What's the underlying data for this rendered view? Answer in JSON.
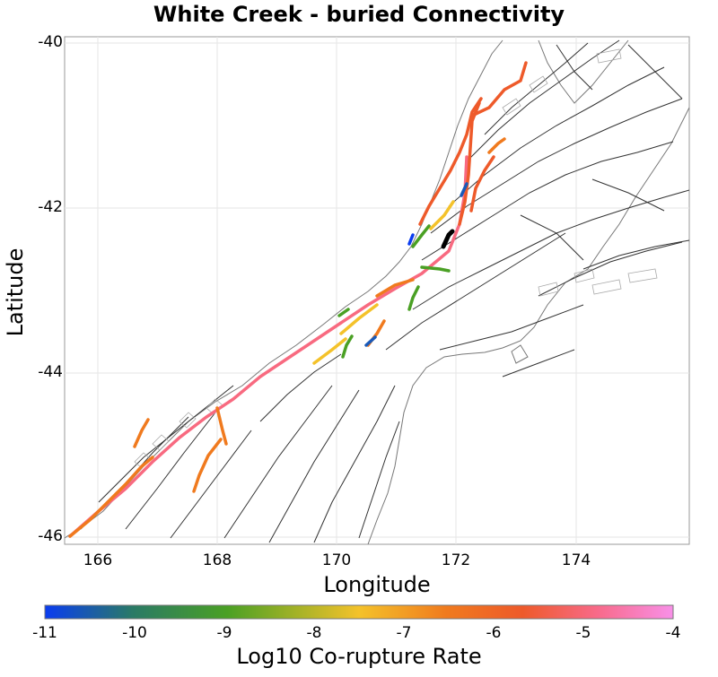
{
  "title": "White Creek - buried Connectivity",
  "xlabel": "Longitude",
  "ylabel": "Latitude",
  "x_ticks": [
    "166",
    "168",
    "170",
    "172",
    "174"
  ],
  "y_ticks": [
    "-40",
    "-42",
    "-44",
    "-46"
  ],
  "colorbar": {
    "label": "Log10 Co-rupture Rate",
    "ticks": [
      "-11",
      "-10",
      "-9",
      "-8",
      "-7",
      "-6",
      "-5",
      "-4"
    ],
    "range": [
      -11,
      -4
    ],
    "stops": [
      "#0a3cf0",
      "#2a8a3a",
      "#4aa024",
      "#f4c22a",
      "#f07a1e",
      "#ee5a2a",
      "#f86a8a",
      "#f890e8"
    ]
  },
  "map_data": {
    "xlim": [
      165.4,
      175.8
    ],
    "ylim": [
      -46.1,
      -39.9
    ],
    "coastline_color": "#777777",
    "fault_color": "#333333",
    "reference_fault_color": "#000000"
  }
}
